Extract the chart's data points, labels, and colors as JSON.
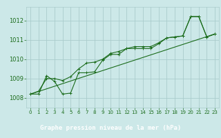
{
  "title": "Graphe pression niveau de la mer (hPa)",
  "bg_color": "#cce8e8",
  "grid_color": "#aacccc",
  "line_color": "#1a6b1a",
  "footer_bg": "#2d6b2d",
  "footer_text_color": "#ffffff",
  "xlim": [
    -0.5,
    23.5
  ],
  "ylim": [
    1007.5,
    1012.7
  ],
  "xticks": [
    0,
    1,
    2,
    3,
    4,
    5,
    6,
    7,
    8,
    9,
    10,
    11,
    12,
    13,
    14,
    15,
    16,
    17,
    18,
    19,
    20,
    21,
    22,
    23
  ],
  "yticks": [
    1008,
    1009,
    1010,
    1011,
    1012
  ],
  "series_main": [
    [
      0,
      1008.2
    ],
    [
      1,
      1008.2
    ],
    [
      2,
      1009.15
    ],
    [
      3,
      1008.85
    ],
    [
      4,
      1008.2
    ],
    [
      5,
      1008.25
    ],
    [
      6,
      1009.3
    ],
    [
      7,
      1009.3
    ],
    [
      8,
      1009.35
    ],
    [
      9,
      1009.95
    ],
    [
      10,
      1010.25
    ],
    [
      11,
      1010.25
    ],
    [
      12,
      1010.55
    ],
    [
      13,
      1010.55
    ],
    [
      14,
      1010.55
    ],
    [
      15,
      1010.55
    ],
    [
      16,
      1010.8
    ],
    [
      17,
      1011.1
    ],
    [
      18,
      1011.15
    ],
    [
      19,
      1011.2
    ],
    [
      20,
      1012.2
    ],
    [
      21,
      1012.2
    ],
    [
      22,
      1011.15
    ],
    [
      23,
      1011.3
    ]
  ],
  "series_smooth": [
    [
      0,
      1008.2
    ],
    [
      1,
      1008.35
    ],
    [
      2,
      1009.0
    ],
    [
      3,
      1009.0
    ],
    [
      4,
      1008.9
    ],
    [
      5,
      1009.1
    ],
    [
      6,
      1009.5
    ],
    [
      7,
      1009.8
    ],
    [
      8,
      1009.85
    ],
    [
      9,
      1010.0
    ],
    [
      10,
      1010.3
    ],
    [
      11,
      1010.4
    ],
    [
      12,
      1010.55
    ],
    [
      13,
      1010.65
    ],
    [
      14,
      1010.65
    ],
    [
      15,
      1010.65
    ],
    [
      16,
      1010.85
    ],
    [
      17,
      1011.1
    ],
    [
      18,
      1011.15
    ],
    [
      19,
      1011.2
    ],
    [
      20,
      1012.2
    ],
    [
      21,
      1012.2
    ],
    [
      22,
      1011.15
    ],
    [
      23,
      1011.3
    ]
  ],
  "series_trend": [
    [
      0,
      1008.2
    ],
    [
      23,
      1011.3
    ]
  ]
}
